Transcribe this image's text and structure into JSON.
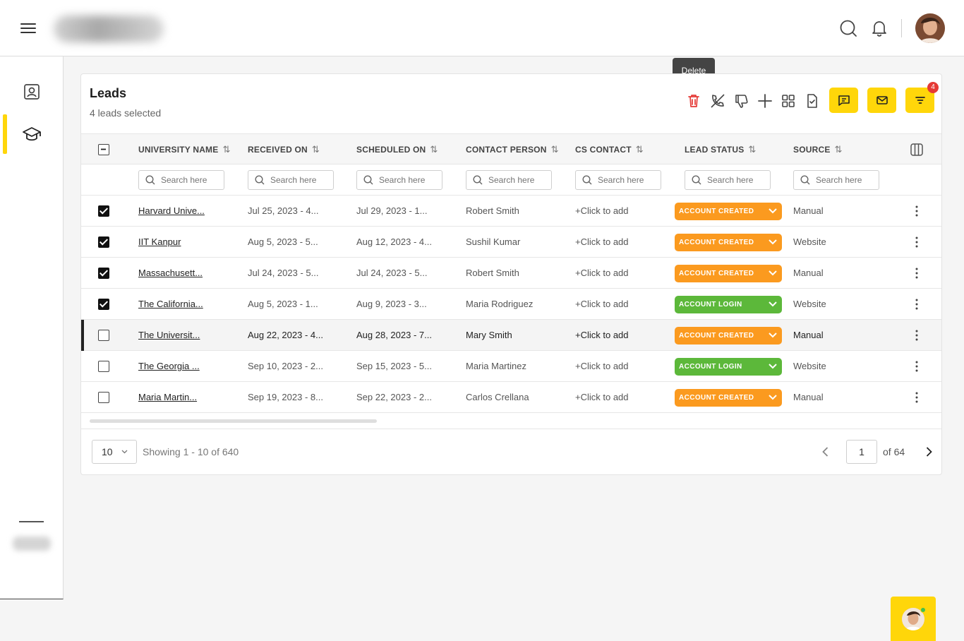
{
  "header": {
    "menu_icon": "hamburger-icon",
    "search_icon": "search-icon",
    "notification_icon": "bell-icon"
  },
  "sidebar": {
    "items": [
      {
        "icon": "contact-card-icon",
        "active": false
      },
      {
        "icon": "graduation-cap-icon",
        "active": true
      }
    ]
  },
  "leads": {
    "title": "Leads",
    "subtitle": "4 leads selected",
    "tooltip": "Delete",
    "filter_badge": "4"
  },
  "columns": {
    "university": "UNIVERSITY NAME",
    "received": "RECEIVED ON",
    "scheduled": "SCHEDULED ON",
    "contact": "CONTACT PERSON",
    "cs": "CS CONTACT",
    "status": "LEAD STATUS",
    "source": "SOURCE"
  },
  "search_placeholder": "Search here",
  "rows": [
    {
      "checked": true,
      "university": "Harvard Unive...",
      "received": "Jul 25, 2023 - 4...",
      "scheduled": "Jul 29, 2023 - 1...",
      "contact": "Robert Smith",
      "cs": "+Click to add",
      "status": "ACCOUNT CREATED",
      "source": "Manual"
    },
    {
      "checked": true,
      "university": "IIT Kanpur",
      "received": "Aug 5, 2023 - 5...",
      "scheduled": "Aug 12, 2023 - 4...",
      "contact": "Sushil Kumar",
      "cs": "+Click to add",
      "status": "ACCOUNT CREATED",
      "source": "Website"
    },
    {
      "checked": true,
      "university": "Massachusett...",
      "received": "Jul 24, 2023 - 5...",
      "scheduled": "Jul 24, 2023 - 5...",
      "contact": "Robert Smith",
      "cs": "+Click to add",
      "status": "ACCOUNT CREATED",
      "source": "Manual"
    },
    {
      "checked": true,
      "university": "The California...",
      "received": "Aug 5, 2023 - 1...",
      "scheduled": "Aug 9, 2023 - 3...",
      "contact": "Maria Rodriguez",
      "cs": "+Click to add",
      "status": "ACCOUNT LOGIN",
      "source": "Website"
    },
    {
      "checked": false,
      "university": "The Universit...",
      "received": "Aug 22, 2023 - 4...",
      "scheduled": "Aug 28, 2023 - 7...",
      "contact": "Mary Smith",
      "cs": "+Click to add",
      "status": "ACCOUNT CREATED",
      "source": "Manual"
    },
    {
      "checked": false,
      "university": "The Georgia ...",
      "received": "Sep 10, 2023 - 2...",
      "scheduled": "Sep 15, 2023 - 5...",
      "contact": "Maria Martinez",
      "cs": "+Click to add",
      "status": "ACCOUNT LOGIN",
      "source": "Website"
    },
    {
      "checked": false,
      "university": "Maria Martin...",
      "received": "Sep 19, 2023 - 8...",
      "scheduled": "Sep 22, 2023 - 2...",
      "contact": "Carlos Crellana",
      "cs": "+Click to add",
      "status": "ACCOUNT CREATED",
      "source": "Manual"
    }
  ],
  "status_colors": {
    "ACCOUNT CREATED": "#fb9a1f",
    "ACCOUNT LOGIN": "#5cb83a"
  },
  "accent_color": "#ffd60a",
  "pagination": {
    "page_size": "10",
    "showing": "Showing 1 - 10 of 640",
    "current_page": "1",
    "of_pages": "of 64"
  }
}
